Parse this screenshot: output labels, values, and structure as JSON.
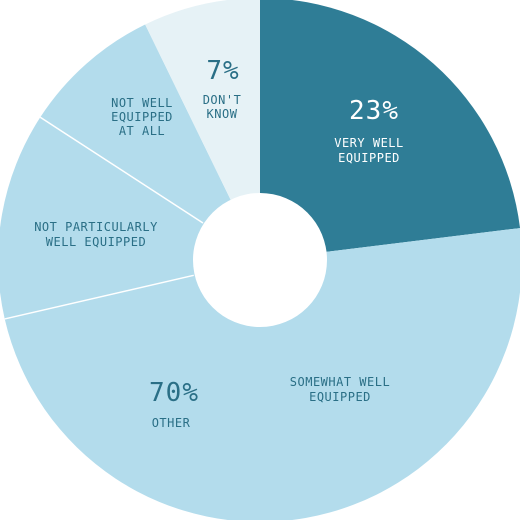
{
  "chart_data": {
    "type": "pie",
    "donut": true,
    "slices": [
      {
        "label": "VERY WELL EQUIPPED",
        "value": 23,
        "color": "#2f7d96"
      },
      {
        "label": "SOMEWHAT WELL EQUIPPED",
        "value": null,
        "color": "#b3dcec"
      },
      {
        "label": "NOT PARTICULARLY WELL EQUIPPED",
        "value": null,
        "color": "#b3dcec"
      },
      {
        "label": "NOT WELL EQUIPPED AT ALL",
        "value": null,
        "color": "#b3dcec"
      },
      {
        "label": "DON'T KNOW",
        "value": 7,
        "color": "#e6f2f6"
      }
    ],
    "group": {
      "label": "OTHER",
      "value": 70,
      "members": [
        "SOMEWHAT WELL EQUIPPED",
        "NOT PARTICULARLY WELL EQUIPPED",
        "NOT WELL EQUIPPED AT ALL"
      ]
    },
    "text": {
      "very_pct": "23%",
      "very_l1": "VERY WELL",
      "very_l2": "EQUIPPED",
      "dk_pct": "7%",
      "dk_l1": "DON'T",
      "dk_l2": "KNOW",
      "other_pct": "70%",
      "other_label": "OTHER",
      "somewhat_l1": "SOMEWHAT WELL",
      "somewhat_l2": "EQUIPPED",
      "notpart_l1": "NOT PARTICULARLY",
      "notpart_l2": "WELL EQUIPPED",
      "notwell_l1": "NOT WELL",
      "notwell_l2": "EQUIPPED",
      "notwell_l3": "AT ALL"
    }
  }
}
